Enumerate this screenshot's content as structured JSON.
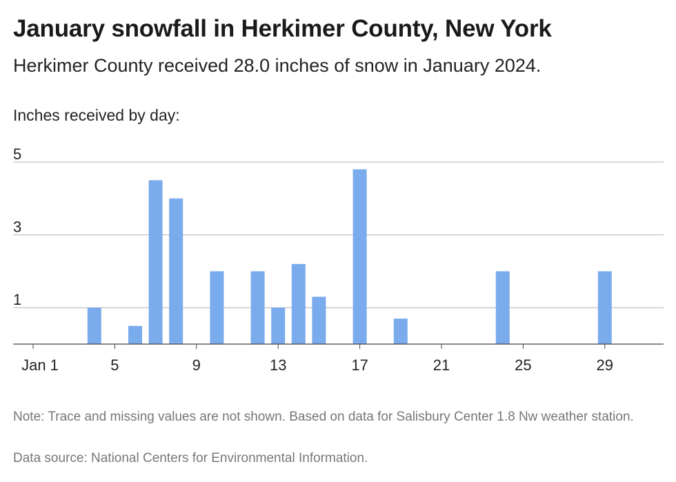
{
  "header": {
    "title": "January snowfall in Herkimer County, New York",
    "subtitle": "Herkimer County received 28.0 inches of snow in January 2024.",
    "chart_label": "Inches received by day:"
  },
  "footer": {
    "note": "Note: Trace and missing values are not shown. Based on data for Salisbury Center 1.8 Nw weather station.",
    "source": "Data source: National Centers for Environmental Information."
  },
  "colors": {
    "bar": "#7aabec",
    "grid": "#b3b3b3",
    "axis": "#444444"
  },
  "chart_data": {
    "type": "bar",
    "title": "January snowfall in Herkimer County, New York",
    "ylabel": "Inches received by day:",
    "xlabel": "",
    "x": [
      4,
      6,
      7,
      8,
      10,
      12,
      13,
      14,
      15,
      17,
      19,
      24,
      29
    ],
    "values": [
      1.0,
      0.5,
      4.5,
      4.0,
      2.0,
      2.0,
      1.0,
      2.2,
      1.3,
      4.8,
      0.7,
      2.0,
      2.0
    ],
    "xlim": [
      1,
      31
    ],
    "ylim": [
      0,
      5
    ],
    "yticks": [
      1,
      3,
      5
    ],
    "xticks": [
      1,
      5,
      9,
      13,
      17,
      21,
      25,
      29
    ],
    "xtick_labels": [
      "Jan 1",
      "5",
      "9",
      "13",
      "17",
      "21",
      "25",
      "29"
    ],
    "grid": true,
    "legend": "none"
  }
}
